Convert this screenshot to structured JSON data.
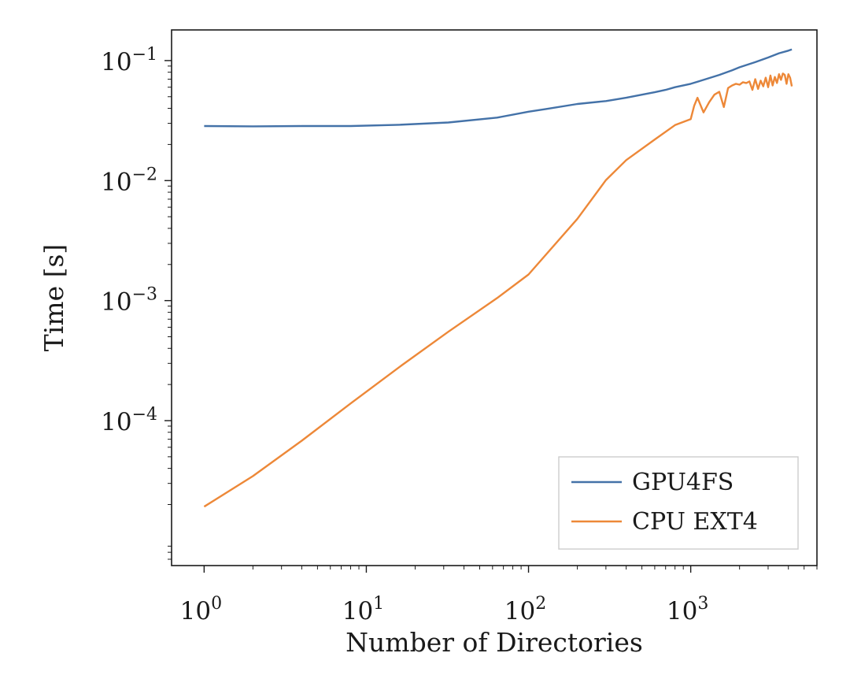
{
  "chart_data": {
    "type": "line",
    "title": "",
    "xlabel": "Number of Directories",
    "ylabel": "Time [s]",
    "xscale": "log",
    "yscale": "log",
    "xlim": [
      0.63,
      6000
    ],
    "ylim": [
      6.2e-06,
      0.18
    ],
    "grid": false,
    "legend_position": "lower-right",
    "xticks": [
      {
        "value": 1,
        "base": "10",
        "exp": "0"
      },
      {
        "value": 10,
        "base": "10",
        "exp": "1"
      },
      {
        "value": 100,
        "base": "10",
        "exp": "2"
      },
      {
        "value": 1000,
        "base": "10",
        "exp": "3"
      }
    ],
    "yticks": [
      {
        "value": 0.0001,
        "base": "10",
        "exp": "−4"
      },
      {
        "value": 0.001,
        "base": "10",
        "exp": "−3"
      },
      {
        "value": 0.01,
        "base": "10",
        "exp": "−2"
      },
      {
        "value": 0.1,
        "base": "10",
        "exp": "−1"
      }
    ],
    "series": [
      {
        "name": "GPU4FS",
        "color": "#4472a8",
        "x": [
          1,
          2,
          4,
          8,
          16,
          32,
          64,
          100,
          128,
          200,
          300,
          400,
          500,
          600,
          700,
          800,
          1000,
          1200,
          1500,
          1800,
          2000,
          2500,
          3000,
          3500,
          4000,
          4200
        ],
        "y": [
          0.0285,
          0.0283,
          0.0285,
          0.0285,
          0.0292,
          0.0305,
          0.0335,
          0.0375,
          0.0395,
          0.0435,
          0.046,
          0.049,
          0.052,
          0.0545,
          0.057,
          0.06,
          0.064,
          0.069,
          0.076,
          0.083,
          0.088,
          0.097,
          0.106,
          0.115,
          0.121,
          0.124
        ]
      },
      {
        "name": "CPU EXT4",
        "color": "#ed8838",
        "x": [
          1,
          2,
          4,
          8,
          16,
          32,
          64,
          100,
          200,
          300,
          400,
          600,
          800,
          1000,
          1050,
          1100,
          1200,
          1300,
          1400,
          1500,
          1600,
          1700,
          1800,
          1900,
          2000,
          2100,
          2200,
          2300,
          2400,
          2500,
          2600,
          2700,
          2800,
          2900,
          3000,
          3100,
          3200,
          3300,
          3400,
          3500,
          3600,
          3700,
          3800,
          3900,
          4000,
          4100,
          4200
        ],
        "y": [
          1.92e-05,
          3.45e-05,
          6.8e-05,
          0.000139,
          0.00028,
          0.00055,
          0.00105,
          0.00165,
          0.0048,
          0.0101,
          0.0148,
          0.022,
          0.029,
          0.0325,
          0.042,
          0.049,
          0.037,
          0.045,
          0.052,
          0.055,
          0.041,
          0.059,
          0.062,
          0.064,
          0.063,
          0.066,
          0.065,
          0.067,
          0.057,
          0.07,
          0.058,
          0.068,
          0.061,
          0.072,
          0.06,
          0.075,
          0.062,
          0.073,
          0.065,
          0.077,
          0.069,
          0.078,
          0.076,
          0.064,
          0.077,
          0.072,
          0.061
        ]
      }
    ]
  }
}
